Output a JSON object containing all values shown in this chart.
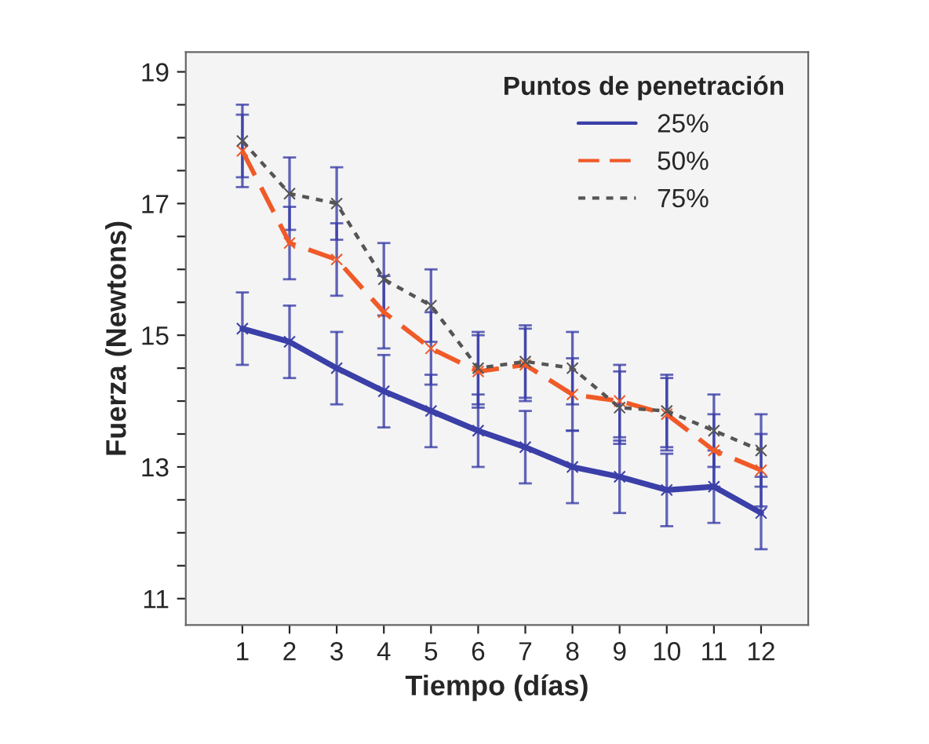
{
  "chart_data": {
    "type": "line",
    "xlabel": "Tiempo (días)",
    "ylabel": "Fuerza (Newtons)",
    "legend_title": "Puntos de penetración",
    "x": [
      1,
      2,
      3,
      4,
      5,
      6,
      7,
      8,
      9,
      10,
      11,
      12
    ],
    "series": [
      {
        "name": "25%",
        "color": "#3b3fa8",
        "line_style": "solid",
        "values": [
          15.1,
          14.9,
          14.5,
          14.15,
          13.85,
          13.55,
          13.3,
          13.0,
          12.85,
          12.65,
          12.7,
          12.3
        ],
        "errors": [
          0.55,
          0.55,
          0.55,
          0.55,
          0.55,
          0.55,
          0.55,
          0.55,
          0.55,
          0.55,
          0.55,
          0.55
        ]
      },
      {
        "name": "50%",
        "color": "#f05a28",
        "line_style": "dashed",
        "values": [
          17.8,
          16.4,
          16.15,
          15.35,
          14.8,
          14.45,
          14.55,
          14.1,
          14.0,
          13.8,
          13.25,
          12.95
        ],
        "errors": [
          0.55,
          0.55,
          0.55,
          0.55,
          0.55,
          0.55,
          0.55,
          0.55,
          0.55,
          0.55,
          0.55,
          0.55
        ]
      },
      {
        "name": "75%",
        "color": "#555555",
        "line_style": "dotted",
        "values": [
          17.95,
          17.15,
          17.0,
          15.85,
          15.45,
          14.5,
          14.6,
          14.5,
          13.9,
          13.85,
          13.55,
          13.25
        ],
        "errors": [
          0.55,
          0.55,
          0.55,
          0.55,
          0.55,
          0.55,
          0.55,
          0.55,
          0.55,
          0.55,
          0.55,
          0.55
        ]
      }
    ],
    "xlim": [
      -0.2,
      13.0
    ],
    "xticks": [
      1,
      2,
      3,
      4,
      5,
      6,
      7,
      8,
      9,
      10,
      11,
      12
    ],
    "ylim": [
      10.6,
      19.3
    ],
    "yticks": [
      11,
      {
        "value": 11.5,
        "label": null
      },
      {
        "value": 12,
        "label": null
      },
      {
        "value": 12.5,
        "label": null
      },
      13,
      {
        "value": 13.5,
        "label": null
      },
      {
        "value": 14,
        "label": null
      },
      {
        "value": 14.5,
        "label": null
      },
      15,
      {
        "value": 15.5,
        "label": null
      },
      {
        "value": 16,
        "label": null
      },
      {
        "value": 16.5,
        "label": null
      },
      17,
      {
        "value": 17.5,
        "label": null
      },
      {
        "value": 18,
        "label": null
      },
      {
        "value": 18.5,
        "label": null
      },
      19
    ],
    "marker": "cross",
    "grid": false,
    "legend": "top right"
  }
}
